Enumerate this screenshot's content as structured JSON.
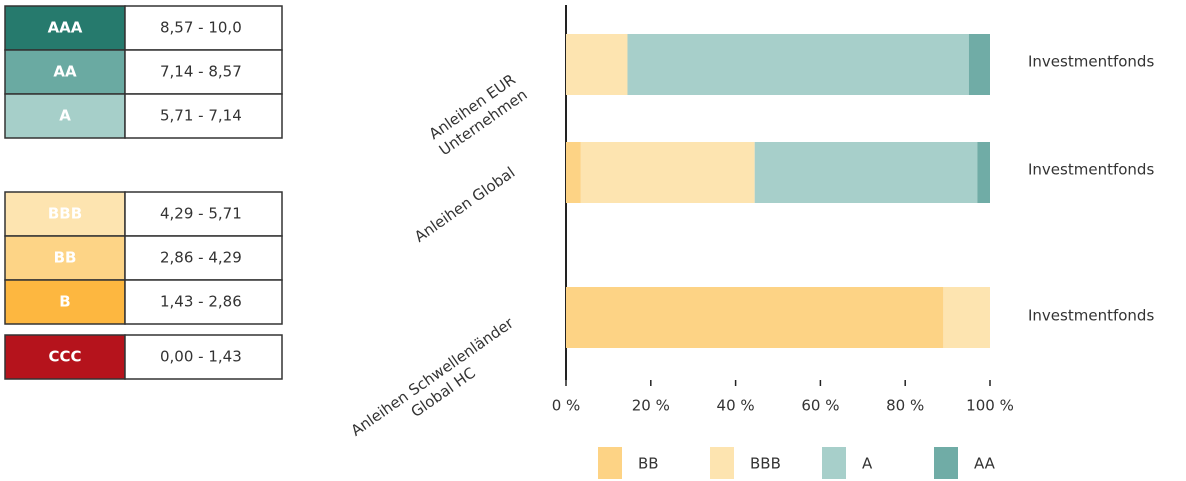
{
  "rating_table": {
    "groups": [
      [
        {
          "rating": "AAA",
          "range": "8,57 - 10,0",
          "color": "#267a6d"
        },
        {
          "rating": "AA",
          "range": "7,14 - 8,57",
          "color": "#6aaaa2"
        },
        {
          "rating": "A",
          "range": "5,71 - 7,14",
          "color": "#a6cfc9"
        }
      ],
      [
        {
          "rating": "BBB",
          "range": "4,29 - 5,71",
          "color": "#fde4b0"
        },
        {
          "rating": "BB",
          "range": "2,86 - 4,29",
          "color": "#fdd486"
        },
        {
          "rating": "B",
          "range": "1,43 - 2,86",
          "color": "#fdb740"
        }
      ],
      [
        {
          "rating": "CCC",
          "range": "0,00 - 1,43",
          "color": "#b5131c"
        }
      ]
    ]
  },
  "chart_data": {
    "type": "stacked_barh",
    "categories": [
      [
        "Anleihen EUR",
        "Unternehmen"
      ],
      [
        "Anleihen Global"
      ],
      [
        "Anleihen Schwellenländer",
        "Global HC"
      ]
    ],
    "bar_labels": [
      "Investmentfonds",
      "Investmentfonds",
      "Investmentfonds"
    ],
    "series": [
      {
        "name": "BB",
        "color": "#fdd385",
        "values": [
          0,
          3.5,
          89
        ]
      },
      {
        "name": "BBB",
        "color": "#fde4b0",
        "values": [
          14.5,
          41,
          11
        ]
      },
      {
        "name": "A",
        "color": "#a7cfca",
        "values": [
          80.5,
          52.5,
          0
        ]
      },
      {
        "name": "AA",
        "color": "#70aca6",
        "values": [
          5,
          3,
          0
        ]
      }
    ],
    "xlim": [
      0,
      100
    ],
    "xticks": [
      {
        "value": 0,
        "label": "0 %"
      },
      {
        "value": 20,
        "label": "20 %"
      },
      {
        "value": 40,
        "label": "40 %"
      },
      {
        "value": 60,
        "label": "60 %"
      },
      {
        "value": 80,
        "label": "80 %"
      },
      {
        "value": 100,
        "label": "100 %"
      }
    ]
  }
}
